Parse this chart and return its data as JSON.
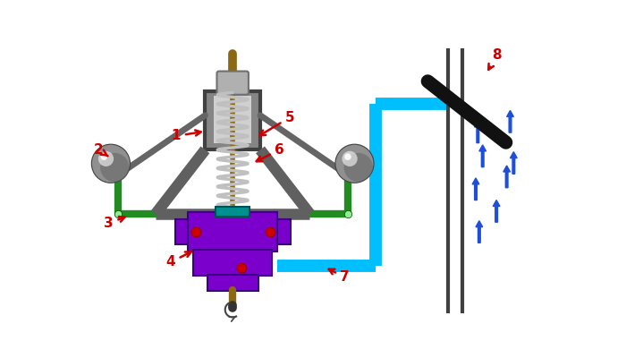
{
  "bg_color": "#ffffff",
  "frame_color": "#606060",
  "green_arm_color": "#228B22",
  "purple_body_color": "#7B00CC",
  "cyan_pipe_color": "#00BFFF",
  "spindle_color": "#8B6914",
  "red_color": "#CC0000",
  "blue_arrow_color": "#1E4FD8",
  "black_color": "#111111",
  "wall_color": "#404040",
  "teal_color": "#009090",
  "spring_color": "#C0C0C0",
  "nut_color": "#B0B0B0"
}
